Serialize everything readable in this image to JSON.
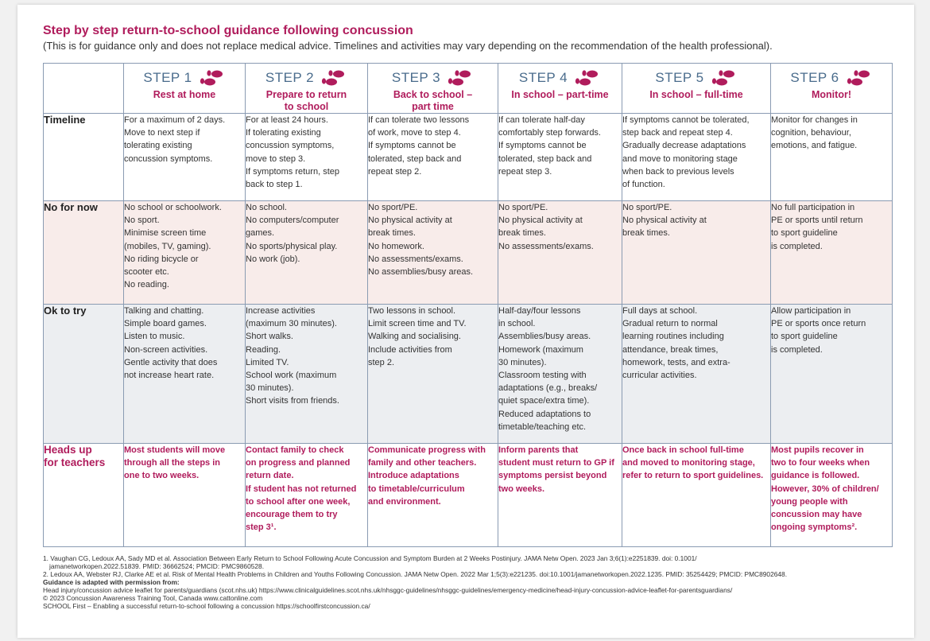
{
  "title": "Step by step return-to-school guidance following concussion",
  "subtitle": "(This is for guidance only and does not replace medical advice. Timelines and activities may vary depending on the recommendation of the health professional).",
  "colors": {
    "accent": "#b01c5c",
    "step_blue": "#4a6c8c",
    "border": "#8a9bb2",
    "no_bg": "#f8ecea",
    "ok_bg": "#eceef1"
  },
  "icon": "footprints-icon",
  "steps": [
    {
      "label": "STEP 1",
      "name": [
        "Rest at home"
      ]
    },
    {
      "label": "STEP 2",
      "name": [
        "Prepare to return",
        "to school"
      ]
    },
    {
      "label": "STEP 3",
      "name": [
        "Back to school –",
        "part time"
      ]
    },
    {
      "label": "STEP 4",
      "name": [
        "In school – part-time"
      ]
    },
    {
      "label": "STEP 5",
      "name": [
        "In school – full-time"
      ]
    },
    {
      "label": "STEP 6",
      "name": [
        "Monitor!"
      ]
    }
  ],
  "rows": [
    {
      "label": [
        "Timeline"
      ],
      "cells": [
        [
          "For a maximum of 2 days.",
          "Move to next step if",
          "tolerating existing",
          "concussion symptoms."
        ],
        [
          "For at least 24 hours.",
          "If tolerating existing",
          "concussion symptoms,",
          "move to step 3.",
          "If symptoms return, step",
          "back to step 1."
        ],
        [
          "If can tolerate two lessons",
          "of work, move to step 4.",
          "If symptoms cannot be",
          "tolerated, step back and",
          "repeat step 2."
        ],
        [
          "If can tolerate half-day",
          "comfortably step forwards.",
          "If symptoms cannot be",
          "tolerated, step back and",
          "repeat step 3."
        ],
        [
          "If symptoms cannot be tolerated,",
          "step back and repeat step 4.",
          "Gradually decrease adaptations",
          "and move to monitoring stage",
          "when back to previous levels",
          "of function."
        ],
        [
          "Monitor for changes in",
          "cognition, behaviour,",
          "emotions, and fatigue."
        ]
      ]
    },
    {
      "label": [
        "No for now"
      ],
      "cells": [
        [
          "No school or schoolwork.",
          "No sport.",
          "Minimise screen time",
          "(mobiles, TV, gaming).",
          "No riding bicycle or",
          "scooter etc.",
          "No reading."
        ],
        [
          "No school.",
          "No computers/computer",
          "games.",
          "No sports/physical play.",
          "No work (job)."
        ],
        [
          "No sport/PE.",
          "No physical activity at",
          "break times.",
          "No homework.",
          "No assessments/exams.",
          "No assemblies/busy areas."
        ],
        [
          "No sport/PE.",
          "No physical activity at",
          "break times.",
          "No assessments/exams."
        ],
        [
          "No sport/PE.",
          "No physical activity at",
          "break times."
        ],
        [
          "No full participation in",
          "PE or sports until return",
          "to sport guideline",
          "is completed."
        ]
      ]
    },
    {
      "label": [
        "Ok to try"
      ],
      "cells": [
        [
          "Talking and chatting.",
          "Simple board games.",
          "Listen to music.",
          "Non-screen activities.",
          "Gentle activity that does",
          "not increase heart rate."
        ],
        [
          "Increase activities",
          "(maximum 30 minutes).",
          "Short walks.",
          "Reading.",
          "Limited TV.",
          "School work (maximum",
          "30 minutes).",
          "Short visits from friends."
        ],
        [
          "Two lessons in school.",
          "Limit screen time and TV.",
          "Walking and socialising.",
          "Include activities from",
          "step 2."
        ],
        [
          "Half-day/four lessons",
          "in school.",
          "Assemblies/busy areas.",
          "Homework (maximum",
          "30 minutes).",
          "Classroom testing with",
          "adaptations (e.g., breaks/",
          "quiet space/extra time).",
          "Reduced adaptations to",
          "timetable/teaching etc."
        ],
        [
          "Full days at school.",
          "Gradual return to normal",
          "learning routines including",
          "attendance, break times,",
          "homework, tests, and extra-",
          "curricular activities."
        ],
        [
          "Allow participation in",
          "PE or sports once return",
          "to sport guideline",
          "is completed."
        ]
      ]
    },
    {
      "label": [
        "Heads up",
        "for teachers"
      ],
      "cells": [
        [
          "Most students will move",
          "through all the steps in",
          "one to two weeks."
        ],
        [
          "Contact family to check",
          "on progress and planned",
          "return date.",
          "If student has not returned",
          "to school after one week,",
          "encourage them to try",
          "step 3¹."
        ],
        [
          "Communicate progress with",
          "family and other teachers.",
          "Introduce adaptations",
          "to timetable/curriculum",
          "and environment."
        ],
        [
          "Inform parents that",
          "student must return to GP if",
          "symptoms persist beyond",
          "two weeks."
        ],
        [
          "Once back in school full-time",
          "and moved to monitoring stage,",
          "refer to return to sport guidelines."
        ],
        [
          "Most pupils recover in",
          "two to four weeks when",
          "guidance is followed.",
          "However, 30% of children/",
          "young people with",
          "concussion may have",
          "ongoing symptoms²."
        ]
      ]
    }
  ],
  "footer": [
    {
      "text": "1. Vaughan CG, Ledoux AA, Sady MD et al. Association Between Early Return to School Following Acute Concussion and Symptom Burden at 2 Weeks Postinjury. JAMA Netw Open. 2023 Jan 3;6(1):e2251839. doi: 0.1001/",
      "bold": false
    },
    {
      "text": "    jamanetworkopen.2022.51839. PMID: 36662524; PMCID: PMC9860528.",
      "bold": false
    },
    {
      "text": "2. Ledoux AA, Webster RJ, Clarke AE et al. Risk of Mental Health Problems in Children and Youths Following Concussion. JAMA Netw Open. 2022 Mar 1;5(3):e221235. doi:10.1001/jamanetworkopen.2022.1235. PMID: 35254429; PMCID: PMC8902648.",
      "bold": false
    },
    {
      "text": "Guidance is adapted with permission from:",
      "bold": true
    },
    {
      "text": "Head injury/concussion advice leaflet for parents/guardians (scot.nhs.uk) https://www.clinicalguidelines.scot.nhs.uk/nhsggc-guidelines/nhsggc-guidelines/emergency-medicine/head-injury-concussion-advice-leaflet-for-parentsguardians/",
      "bold": false
    },
    {
      "text": "© 2023 Concussion Awareness Training Tool, Canada www.cattonline.com",
      "bold": false
    },
    {
      "text": "SCHOOL First – Enabling a successful return-to-school following a concussion https://schoolfirstconcussion.ca/",
      "bold": false
    }
  ]
}
